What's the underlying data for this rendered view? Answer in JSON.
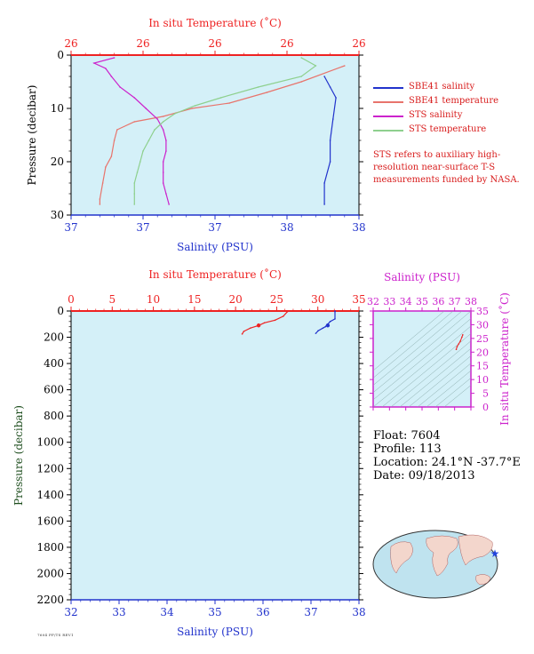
{
  "chart_data": [
    {
      "type": "line",
      "title": "",
      "top_axis_label": "In situ Temperature (˚C)",
      "top_ticks": [
        "26",
        "26",
        "26",
        "26",
        "26"
      ],
      "bottom_axis_label": "Salinity (PSU)",
      "bottom_ticks": [
        "37",
        "37",
        "37",
        "38",
        "38"
      ],
      "ylabel": "Pressure (decibar)",
      "y_ticks": [
        0,
        10,
        20,
        30
      ],
      "ylim": [
        0,
        30
      ],
      "xlim_salinity": [
        37.0,
        38.0
      ],
      "xlim_temperature": [
        25.5,
        26.5
      ],
      "grid": false,
      "legend": [
        "SBE41 salinity",
        "SBE41 temperature",
        "STS salinity",
        "STS temperature"
      ],
      "series": [
        {
          "name": "SBE41 salinity",
          "axis": "salinity",
          "color": "#2233cc",
          "points": [
            [
              37.88,
              4
            ],
            [
              37.9,
              6
            ],
            [
              37.92,
              8
            ],
            [
              37.91,
              12
            ],
            [
              37.9,
              16
            ],
            [
              37.9,
              20
            ],
            [
              37.88,
              24
            ],
            [
              37.88,
              28
            ]
          ]
        },
        {
          "name": "SBE41 temperature",
          "axis": "temperature",
          "color": "#e8746c",
          "points": [
            [
              26.45,
              2
            ],
            [
              26.3,
              5
            ],
            [
              26.18,
              7
            ],
            [
              26.05,
              9
            ],
            [
              25.92,
              10
            ],
            [
              25.82,
              11.5
            ],
            [
              25.72,
              12.5
            ],
            [
              25.66,
              14
            ],
            [
              25.65,
              16
            ],
            [
              25.64,
              19
            ],
            [
              25.62,
              21
            ],
            [
              25.61,
              24
            ],
            [
              25.6,
              27
            ],
            [
              25.6,
              28
            ]
          ]
        },
        {
          "name": "STS salinity",
          "axis": "salinity",
          "color": "#cc22cc",
          "points": [
            [
              37.15,
              0.5
            ],
            [
              37.08,
              1.5
            ],
            [
              37.12,
              2.5
            ],
            [
              37.14,
              4
            ],
            [
              37.17,
              6
            ],
            [
              37.22,
              8
            ],
            [
              37.26,
              10
            ],
            [
              37.3,
              12
            ],
            [
              37.32,
              14
            ],
            [
              37.33,
              16
            ],
            [
              37.33,
              18
            ],
            [
              37.32,
              20
            ],
            [
              37.32,
              22
            ],
            [
              37.32,
              24
            ],
            [
              37.33,
              26
            ],
            [
              37.34,
              28
            ]
          ]
        },
        {
          "name": "STS temperature",
          "axis": "temperature",
          "color": "#8ed08e",
          "points": [
            [
              26.3,
              0.5
            ],
            [
              26.35,
              2
            ],
            [
              26.3,
              4
            ],
            [
              26.15,
              6
            ],
            [
              26.02,
              8
            ],
            [
              25.93,
              9.5
            ],
            [
              25.86,
              11
            ],
            [
              25.82,
              12.5
            ],
            [
              25.79,
              14
            ],
            [
              25.77,
              16
            ],
            [
              25.75,
              18
            ],
            [
              25.74,
              20
            ],
            [
              25.73,
              22
            ],
            [
              25.72,
              24
            ],
            [
              25.72,
              26
            ],
            [
              25.72,
              28
            ]
          ]
        }
      ]
    },
    {
      "type": "line",
      "title": "",
      "top_axis_label": "In situ Temperature (˚C)",
      "top_ticks": [
        "0",
        "5",
        "10",
        "15",
        "20",
        "25",
        "30",
        "35"
      ],
      "bottom_axis_label": "Salinity (PSU)",
      "bottom_ticks": [
        "32",
        "33",
        "34",
        "35",
        "36",
        "37",
        "38"
      ],
      "ylabel": "Pressure (decibar)",
      "y_ticks": [
        "0",
        "200",
        "400",
        "600",
        "800",
        "1000",
        "1200",
        "1400",
        "1600",
        "1800",
        "2000",
        "2200"
      ],
      "ylim": [
        0,
        2200
      ],
      "xlim_salinity": [
        32,
        38
      ],
      "xlim_temperature": [
        0,
        35
      ],
      "grid": false,
      "series": [
        {
          "name": "Temperature",
          "axis": "temperature",
          "color": "#ee2222",
          "points": [
            [
              26.4,
              0
            ],
            [
              26.3,
              5
            ],
            [
              25.8,
              40
            ],
            [
              24.8,
              70
            ],
            [
              23.5,
              90
            ],
            [
              22.8,
              110
            ],
            [
              21.8,
              130
            ],
            [
              21.0,
              155
            ],
            [
              20.8,
              175
            ]
          ]
        },
        {
          "name": "Salinity",
          "axis": "salinity",
          "color": "#2233cc",
          "points": [
            [
              37.5,
              0
            ],
            [
              37.5,
              5
            ],
            [
              37.5,
              60
            ],
            [
              37.4,
              80
            ],
            [
              37.35,
              100
            ],
            [
              37.3,
              120
            ],
            [
              37.25,
              130
            ],
            [
              37.15,
              150
            ],
            [
              37.1,
              170
            ]
          ]
        }
      ],
      "markers": [
        {
          "axis": "temperature",
          "value": 22.8,
          "pressure": 110,
          "color": "#ee2222"
        },
        {
          "axis": "salinity",
          "value": 37.35,
          "pressure": 110,
          "color": "#2233cc"
        }
      ]
    },
    {
      "type": "scatter",
      "title": "",
      "top_axis_label": "Salinity (PSU)",
      "top_ticks": [
        "32",
        "33",
        "34",
        "35",
        "36",
        "37",
        "38"
      ],
      "right_axis_label": "In situ Temperature (˚C)",
      "right_ticks": [
        "0",
        "5",
        "10",
        "15",
        "20",
        "25",
        "30",
        "35"
      ],
      "xlim": [
        32,
        38
      ],
      "ylim": [
        0,
        35
      ],
      "points": [
        [
          37.1,
          21.0
        ],
        [
          37.15,
          22.0
        ],
        [
          37.25,
          23.0
        ],
        [
          37.35,
          24.0
        ],
        [
          37.45,
          25.5
        ],
        [
          37.5,
          26.3
        ]
      ],
      "color": "#ee2222"
    }
  ],
  "info": {
    "float": "Float:  7604",
    "profile": "Profile:  113",
    "location": "Location:  24.1°N  -37.7°E",
    "date": "Date:  09/18/2013"
  },
  "note": "STS refers to auxiliary high-resolution near-surface T-S measurements funded by NASA.",
  "footer": "7604 PF/TS REV1",
  "colors": {
    "plot_bg": "#d4f0f8",
    "temperature": "#ee2222",
    "salinity": "#2233cc",
    "pressure_label": "#1d4d1d",
    "ts_axis": "#cc22cc"
  },
  "map": {
    "marker": "star",
    "marker_color": "#2244dd"
  }
}
